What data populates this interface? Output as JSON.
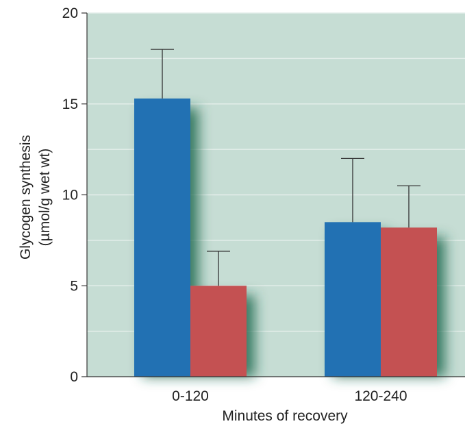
{
  "chart_data": {
    "type": "bar",
    "title": "",
    "xlabel": "Minutes of recovery",
    "ylabel": [
      "Glycogen synthesis",
      "(µmol/g wet wt)"
    ],
    "categories": [
      "0-120",
      "120-240"
    ],
    "ylim": [
      0,
      20
    ],
    "yticks": [
      "0",
      "5",
      "10",
      "15",
      "20"
    ],
    "grid": true,
    "legend": "none",
    "series": [
      {
        "color": "#2271b3",
        "values": [
          15.3,
          8.5
        ],
        "error_upper": [
          18.0,
          12.0
        ]
      },
      {
        "color": "#c45152",
        "values": [
          5.0,
          8.2
        ],
        "error_upper": [
          6.9,
          10.5
        ]
      }
    ],
    "colors": {
      "plot_background": "#c6ddd4",
      "gridline": "#e4eeea",
      "shadow": "#1f6a50",
      "axis": "#333333"
    }
  }
}
